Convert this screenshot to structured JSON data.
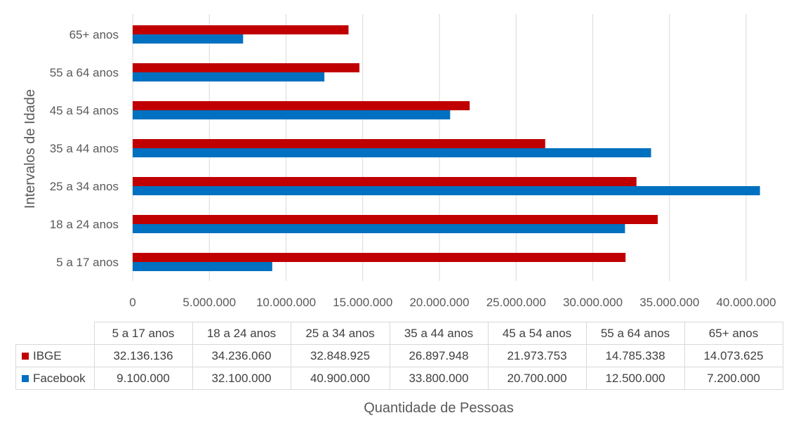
{
  "chart_data": {
    "type": "bar",
    "orientation": "horizontal",
    "categories": [
      "5 a 17 anos",
      "18 a 24 anos",
      "25 a 34 anos",
      "35 a 44 anos",
      "45 a 54 anos",
      "55 a 64 anos",
      "65+ anos"
    ],
    "series": [
      {
        "name": "IBGE",
        "color": "#c00000",
        "values": [
          32136136,
          34236060,
          32848925,
          26897948,
          21973753,
          14785338,
          14073625
        ],
        "value_labels": [
          "32.136.136",
          "34.236.060",
          "32.848.925",
          "26.897.948",
          "21.973.753",
          "14.785.338",
          "14.073.625"
        ]
      },
      {
        "name": "Facebook",
        "color": "#0070c0",
        "values": [
          9100000,
          32100000,
          40900000,
          33800000,
          20700000,
          12500000,
          7200000
        ],
        "value_labels": [
          "9.100.000",
          "32.100.000",
          "40.900.000",
          "33.800.000",
          "20.700.000",
          "12.500.000",
          "7.200.000"
        ]
      }
    ],
    "xlabel": "Quantidade de Pessoas",
    "ylabel": "Intervalos de Idade",
    "xlim": [
      0,
      40000000
    ],
    "xticks": [
      0,
      5000000,
      10000000,
      15000000,
      20000000,
      25000000,
      30000000,
      35000000,
      40000000
    ],
    "xtick_labels": [
      "0",
      "5.000.000",
      "10.000.000",
      "15.000.000",
      "20.000.000",
      "25.000.000",
      "30.000.000",
      "35.000.000",
      "40.000.000"
    ],
    "grid": "vertical",
    "legend": "data-table"
  }
}
